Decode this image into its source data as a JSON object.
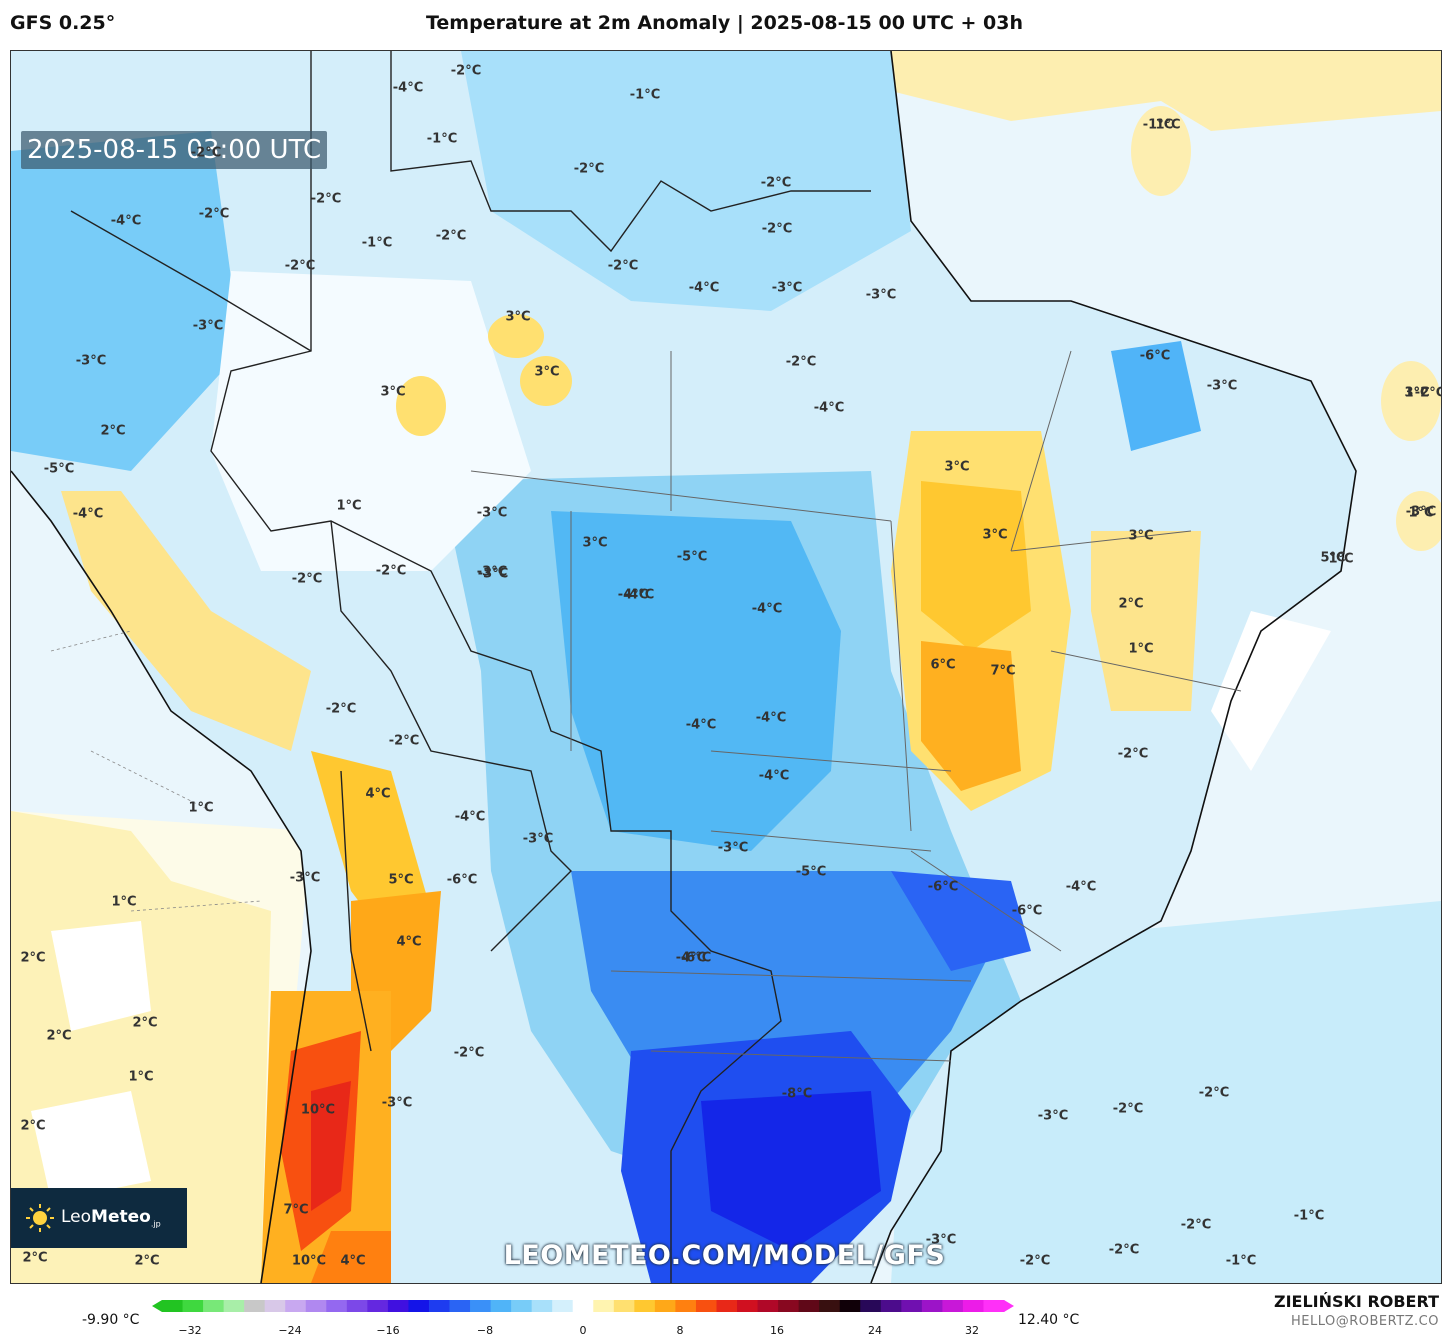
{
  "header": {
    "model": "GFS 0.25°",
    "title": "Temperature at 2m Anomaly | 2025-08-15 00 UTC + 03h"
  },
  "valid_time": "2025-08-15 03:00 UTC",
  "logo": {
    "prefix": "Leo",
    "brand": "Meteo",
    "suffix": ".jp"
  },
  "watermark": "LEOMETEO.COM/MODEL/GFS",
  "colorbar": {
    "min_label": "-9.90 °C",
    "max_label": "12.40 °C",
    "ticks": [
      "−32",
      "−24",
      "−16",
      "−8",
      "0",
      "8",
      "16",
      "24",
      "32"
    ],
    "colors": [
      "#22c422",
      "#3fd83f",
      "#78e878",
      "#a8eea8",
      "#c8c8c8",
      "#d8c8e8",
      "#c8a8f0",
      "#b088f0",
      "#9468f0",
      "#7c48e8",
      "#6428e0",
      "#4010e0",
      "#1414e8",
      "#1e3cf0",
      "#2a64f4",
      "#3a90f8",
      "#50b4f8",
      "#78ccf8",
      "#a8e0fa",
      "#d4f0fc",
      "#ffffff",
      "#fff4b0",
      "#ffe070",
      "#ffc830",
      "#ffa818",
      "#ff8010",
      "#f85010",
      "#e82818",
      "#d01020",
      "#b00828",
      "#880820",
      "#600818",
      "#381010",
      "#100008",
      "#280858",
      "#4c0c8c",
      "#7010b0",
      "#9c14c8",
      "#c818d8",
      "#ec1ce8",
      "#ff30f8"
    ]
  },
  "author": {
    "name": "ZIELIŃSKI ROBERT",
    "email": "HELLO@ROBERTZ.CO"
  },
  "map_labels": [
    {
      "t": "-4°C"
    },
    {
      "t": "-2°C"
    },
    {
      "t": "-1°C"
    },
    {
      "t": "-1°C"
    },
    {
      "t": "1°C"
    },
    {
      "t": "-2°C"
    },
    {
      "t": "-1°C"
    },
    {
      "t": "-2°C"
    },
    {
      "t": "-4°C"
    },
    {
      "t": "-2°C"
    },
    {
      "t": "-2°C"
    },
    {
      "t": "-2°C"
    },
    {
      "t": "-1°C"
    },
    {
      "t": "-2°C"
    },
    {
      "t": "-2°C"
    },
    {
      "t": "-2°C"
    },
    {
      "t": "-2°C"
    },
    {
      "t": "-3°C"
    },
    {
      "t": "-4°C"
    },
    {
      "t": "-3°C"
    },
    {
      "t": "3°C"
    },
    {
      "t": "-3°C"
    },
    {
      "t": "-2°C"
    },
    {
      "t": "3°C"
    },
    {
      "t": "3°C"
    },
    {
      "t": "-2°C"
    },
    {
      "t": "-4°C"
    },
    {
      "t": "-6°C"
    },
    {
      "t": "-3°C"
    },
    {
      "t": "1°C"
    },
    {
      "t": "-3°C"
    },
    {
      "t": "2°C"
    },
    {
      "t": "3°C"
    },
    {
      "t": "1°C"
    },
    {
      "t": "5°C"
    },
    {
      "t": "-3°C"
    },
    {
      "t": "-4°C"
    },
    {
      "t": "-5°C"
    },
    {
      "t": "3°C"
    },
    {
      "t": "3°C"
    },
    {
      "t": "-3°C"
    },
    {
      "t": "1°C"
    },
    {
      "t": "1°C"
    },
    {
      "t": "-2°C"
    },
    {
      "t": "-2°C"
    },
    {
      "t": "-3°C"
    },
    {
      "t": "-4°C"
    },
    {
      "t": "-5°C"
    },
    {
      "t": "2°C"
    },
    {
      "t": "3°C"
    },
    {
      "t": "3°C"
    },
    {
      "t": "-3°C"
    },
    {
      "t": "6°C"
    },
    {
      "t": "7°C"
    },
    {
      "t": "-2°C"
    },
    {
      "t": "-4°C"
    },
    {
      "t": "-4°C"
    },
    {
      "t": "-2°C"
    },
    {
      "t": "-2°C"
    },
    {
      "t": "1°C"
    },
    {
      "t": "-4°C"
    },
    {
      "t": "-4°C"
    },
    {
      "t": "-4°C"
    },
    {
      "t": "4°C"
    },
    {
      "t": "1°C"
    },
    {
      "t": "-4°C"
    },
    {
      "t": "-3°C"
    },
    {
      "t": "-3°C"
    },
    {
      "t": "-3°C"
    },
    {
      "t": "5°C"
    },
    {
      "t": "-6°C"
    },
    {
      "t": "-5°C"
    },
    {
      "t": "-6°C"
    },
    {
      "t": "-4°C"
    },
    {
      "t": "1°C"
    },
    {
      "t": "-6°C"
    },
    {
      "t": "2°C"
    },
    {
      "t": "-4°C"
    },
    {
      "t": "4°C"
    },
    {
      "t": "-6°C"
    },
    {
      "t": "2°C"
    },
    {
      "t": "2°C"
    },
    {
      "t": "-2°C"
    },
    {
      "t": "1°C"
    },
    {
      "t": "-8°C"
    },
    {
      "t": "-3°C"
    },
    {
      "t": "-2°C"
    },
    {
      "t": "-2°C"
    },
    {
      "t": "2°C"
    },
    {
      "t": "10°C"
    },
    {
      "t": "-3°C"
    },
    {
      "t": "7°C"
    },
    {
      "t": "-2°C"
    },
    {
      "t": "-1°C"
    },
    {
      "t": "-3°C"
    },
    {
      "t": "-2°C"
    },
    {
      "t": "2°C"
    },
    {
      "t": "2°C"
    },
    {
      "t": "10°C"
    },
    {
      "t": "4°C"
    },
    {
      "t": "-2°C"
    },
    {
      "t": "-1°C"
    }
  ]
}
